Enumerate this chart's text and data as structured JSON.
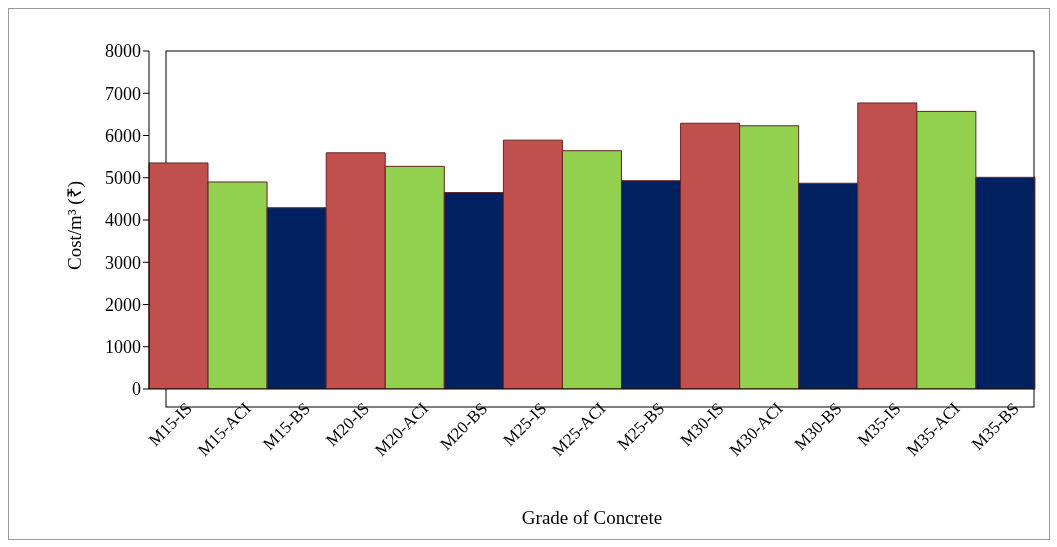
{
  "chart_data": {
    "type": "bar",
    "xlabel": "Grade of Concrete",
    "ylabel": "Cost/m³ (₹)",
    "categories": [
      "M15-IS",
      "M15-ACI",
      "M15-BS",
      "M20-IS",
      "M20-ACI",
      "M20-BS",
      "M25-IS",
      "M25-ACI",
      "M25-BS",
      "M30-IS",
      "M30-ACI",
      "M30-BS",
      "M35-IS",
      "M35-ACI",
      "M35-BS"
    ],
    "values": [
      5350,
      4900,
      4290,
      5590,
      5270,
      4650,
      5890,
      5640,
      4930,
      6290,
      6230,
      4870,
      6770,
      6570,
      5010
    ],
    "colors": [
      "#c0504d",
      "#92d050",
      "#002060",
      "#c0504d",
      "#92d050",
      "#002060",
      "#c0504d",
      "#92d050",
      "#002060",
      "#c0504d",
      "#92d050",
      "#002060",
      "#c0504d",
      "#92d050",
      "#002060"
    ],
    "ylim": [
      0,
      8000
    ],
    "yticks": [
      0,
      1000,
      2000,
      3000,
      4000,
      5000,
      6000,
      7000,
      8000
    ],
    "grid": false,
    "legend": false
  }
}
